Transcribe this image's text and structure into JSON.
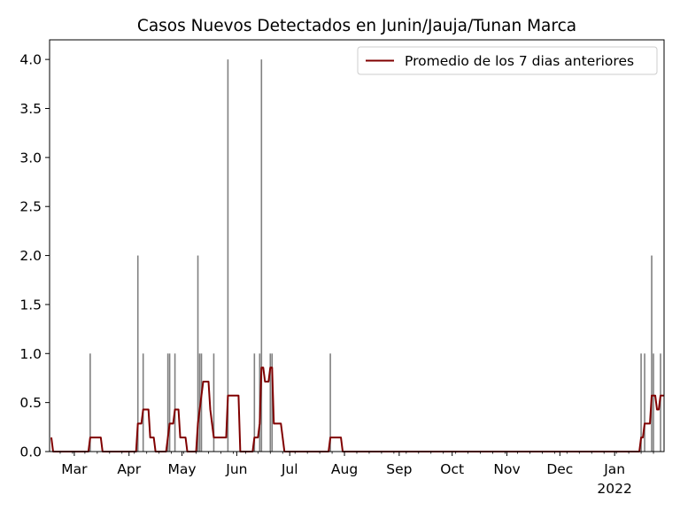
{
  "chart_data": {
    "type": "bar",
    "title": "Casos Nuevos Detectados en Junin/Jauja/Tunan Marca",
    "xlabel": "",
    "ylabel": "",
    "ylim": [
      0,
      4.2
    ],
    "xlim": [
      "2021-02-15",
      "2022-01-29"
    ],
    "y_ticks": [
      "0.0",
      "0.5",
      "1.0",
      "1.5",
      "2.0",
      "2.5",
      "3.0",
      "3.5",
      "4.0"
    ],
    "x_ticks": [
      {
        "date": "2021-03-01",
        "label": "Mar"
      },
      {
        "date": "2021-04-01",
        "label": "Apr"
      },
      {
        "date": "2021-05-01",
        "label": "May"
      },
      {
        "date": "2021-06-01",
        "label": "Jun"
      },
      {
        "date": "2021-07-01",
        "label": "Jul"
      },
      {
        "date": "2021-08-01",
        "label": "Aug"
      },
      {
        "date": "2021-09-01",
        "label": "Sep"
      },
      {
        "date": "2021-10-01",
        "label": "Oct"
      },
      {
        "date": "2021-11-01",
        "label": "Nov"
      },
      {
        "date": "2021-12-01",
        "label": "Dec"
      },
      {
        "date": "2022-01-01",
        "label": "Jan",
        "sublabel": "2022"
      }
    ],
    "bars": {
      "color": "#808080",
      "data": [
        [
          "2021-03-10",
          1
        ],
        [
          "2021-04-06",
          2
        ],
        [
          "2021-04-09",
          1
        ],
        [
          "2021-04-23",
          1
        ],
        [
          "2021-04-24",
          1
        ],
        [
          "2021-04-27",
          1
        ],
        [
          "2021-05-10",
          2
        ],
        [
          "2021-05-11",
          1
        ],
        [
          "2021-05-12",
          1
        ],
        [
          "2021-05-19",
          1
        ],
        [
          "2021-05-27",
          4
        ],
        [
          "2021-06-11",
          1
        ],
        [
          "2021-06-14",
          1
        ],
        [
          "2021-06-15",
          4
        ],
        [
          "2021-06-20",
          1
        ],
        [
          "2021-06-21",
          1
        ],
        [
          "2021-07-24",
          1
        ],
        [
          "2022-01-16",
          1
        ],
        [
          "2022-01-18",
          1
        ],
        [
          "2022-01-22",
          2
        ],
        [
          "2022-01-23",
          1
        ],
        [
          "2022-01-27",
          1
        ]
      ]
    },
    "series": [
      {
        "name": "Promedio de los 7 dias anteriores",
        "color": "#800000",
        "points": [
          [
            "2021-02-16",
            0.143
          ],
          [
            "2021-02-17",
            0
          ],
          [
            "2021-03-09",
            0
          ],
          [
            "2021-03-10",
            0.143
          ],
          [
            "2021-03-16",
            0.143
          ],
          [
            "2021-03-17",
            0
          ],
          [
            "2021-04-05",
            0
          ],
          [
            "2021-04-06",
            0.286
          ],
          [
            "2021-04-08",
            0.286
          ],
          [
            "2021-04-09",
            0.429
          ],
          [
            "2021-04-12",
            0.429
          ],
          [
            "2021-04-13",
            0.143
          ],
          [
            "2021-04-15",
            0.143
          ],
          [
            "2021-04-16",
            0
          ],
          [
            "2021-04-22",
            0
          ],
          [
            "2021-04-23",
            0.143
          ],
          [
            "2021-04-24",
            0.286
          ],
          [
            "2021-04-26",
            0.286
          ],
          [
            "2021-04-27",
            0.429
          ],
          [
            "2021-04-29",
            0.429
          ],
          [
            "2021-04-30",
            0.143
          ],
          [
            "2021-05-03",
            0.143
          ],
          [
            "2021-05-04",
            0
          ],
          [
            "2021-05-09",
            0
          ],
          [
            "2021-05-10",
            0.286
          ],
          [
            "2021-05-11",
            0.429
          ],
          [
            "2021-05-12",
            0.571
          ],
          [
            "2021-05-13",
            0.714
          ],
          [
            "2021-05-16",
            0.714
          ],
          [
            "2021-05-17",
            0.429
          ],
          [
            "2021-05-18",
            0.286
          ],
          [
            "2021-05-19",
            0.143
          ],
          [
            "2021-05-26",
            0.143
          ],
          [
            "2021-05-27",
            0.571
          ],
          [
            "2021-06-02",
            0.571
          ],
          [
            "2021-06-03",
            0
          ],
          [
            "2021-06-10",
            0
          ],
          [
            "2021-06-11",
            0.143
          ],
          [
            "2021-06-13",
            0.143
          ],
          [
            "2021-06-14",
            0.286
          ],
          [
            "2021-06-15",
            0.857
          ],
          [
            "2021-06-16",
            0.857
          ],
          [
            "2021-06-17",
            0.714
          ],
          [
            "2021-06-19",
            0.714
          ],
          [
            "2021-06-20",
            0.857
          ],
          [
            "2021-06-21",
            0.857
          ],
          [
            "2021-06-22",
            0.286
          ],
          [
            "2021-06-26",
            0.286
          ],
          [
            "2021-06-27",
            0.143
          ],
          [
            "2021-06-28",
            0
          ],
          [
            "2021-07-23",
            0
          ],
          [
            "2021-07-24",
            0.143
          ],
          [
            "2021-07-30",
            0.143
          ],
          [
            "2021-07-31",
            0
          ],
          [
            "2022-01-15",
            0
          ],
          [
            "2022-01-16",
            0.143
          ],
          [
            "2022-01-17",
            0.143
          ],
          [
            "2022-01-18",
            0.286
          ],
          [
            "2022-01-21",
            0.286
          ],
          [
            "2022-01-22",
            0.571
          ],
          [
            "2022-01-24",
            0.571
          ],
          [
            "2022-01-25",
            0.429
          ],
          [
            "2022-01-26",
            0.429
          ],
          [
            "2022-01-27",
            0.571
          ],
          [
            "2022-01-29",
            0.571
          ]
        ]
      }
    ],
    "legend": {
      "position": "top-right"
    },
    "grid": false
  }
}
